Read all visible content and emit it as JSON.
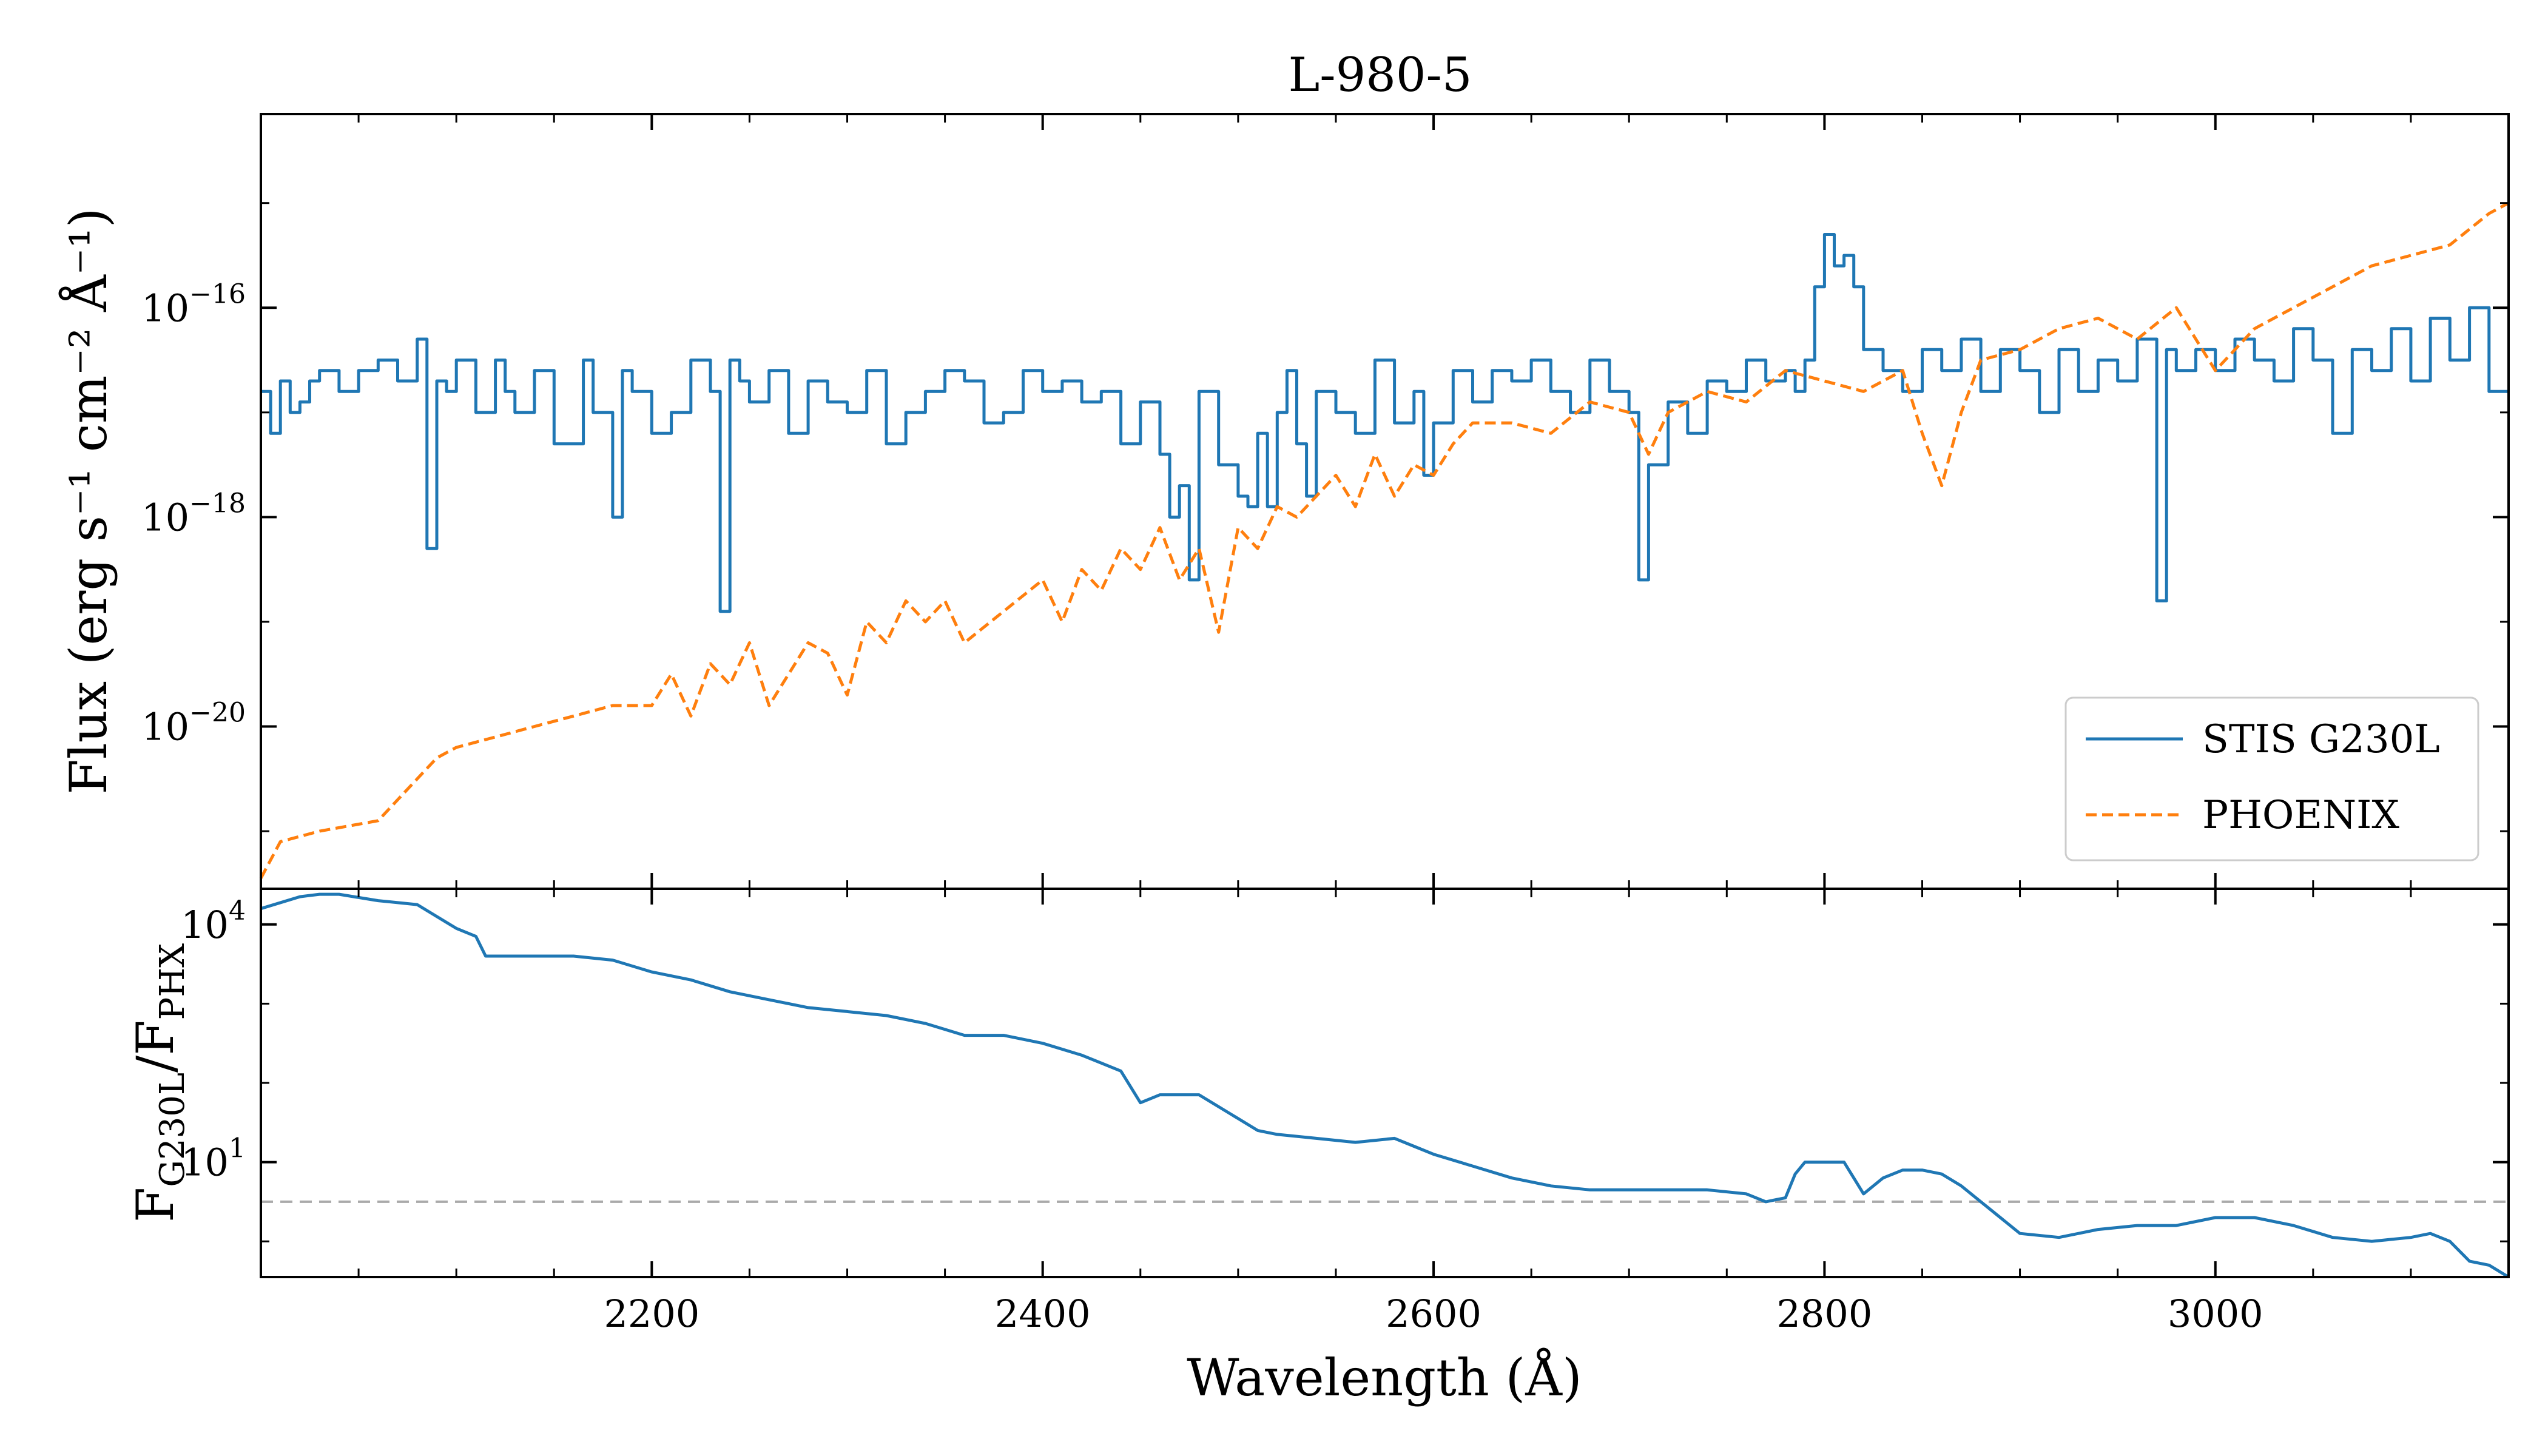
{
  "chart_data": [
    {
      "type": "line",
      "title": "L-980-5",
      "ylabel": "Flux (erg s⁻¹ cm⁻² Å⁻¹)",
      "yscale": "log",
      "xlim": [
        2000,
        3150
      ],
      "ylim_log10": [
        -21.55,
        -14.15
      ],
      "y_ticks": [
        {
          "base": "10",
          "exp": "−16",
          "log10": -16
        },
        {
          "base": "10",
          "exp": "−18",
          "log10": -18
        },
        {
          "base": "10",
          "exp": "−20",
          "log10": -20
        }
      ],
      "legend": {
        "placement": "lower-right",
        "entries": [
          "STIS G230L",
          "PHOENIX"
        ]
      },
      "series": [
        {
          "name": "STIS G230L",
          "style": "steps",
          "color": "#1f77b4",
          "x": [
            2000,
            2005,
            2010,
            2015,
            2020,
            2025,
            2030,
            2040,
            2050,
            2060,
            2070,
            2080,
            2085,
            2090,
            2095,
            2100,
            2110,
            2120,
            2125,
            2130,
            2140,
            2150,
            2160,
            2165,
            2170,
            2180,
            2185,
            2190,
            2200,
            2210,
            2220,
            2230,
            2235,
            2240,
            2245,
            2250,
            2260,
            2270,
            2280,
            2290,
            2300,
            2310,
            2320,
            2330,
            2340,
            2350,
            2360,
            2370,
            2380,
            2390,
            2400,
            2410,
            2420,
            2430,
            2440,
            2450,
            2460,
            2465,
            2470,
            2475,
            2480,
            2490,
            2500,
            2505,
            2510,
            2515,
            2520,
            2525,
            2530,
            2535,
            2540,
            2550,
            2560,
            2570,
            2580,
            2590,
            2595,
            2600,
            2610,
            2620,
            2630,
            2640,
            2650,
            2660,
            2670,
            2680,
            2690,
            2700,
            2705,
            2710,
            2720,
            2730,
            2740,
            2750,
            2760,
            2770,
            2780,
            2785,
            2790,
            2795,
            2800,
            2805,
            2810,
            2815,
            2820,
            2830,
            2840,
            2850,
            2860,
            2870,
            2880,
            2890,
            2900,
            2910,
            2920,
            2930,
            2940,
            2950,
            2960,
            2970,
            2975,
            2980,
            2990,
            3000,
            3010,
            3020,
            3030,
            3040,
            3050,
            3060,
            3070,
            3080,
            3090,
            3100,
            3110,
            3120,
            3130,
            3140,
            3150
          ],
          "log10_flux": [
            -16.8,
            -17.2,
            -16.7,
            -17.0,
            -16.9,
            -16.7,
            -16.6,
            -16.8,
            -16.6,
            -16.5,
            -16.7,
            -16.3,
            -18.3,
            -16.7,
            -16.8,
            -16.5,
            -17.0,
            -16.5,
            -16.8,
            -17.0,
            -16.6,
            -17.3,
            -17.3,
            -16.5,
            -17.0,
            -18.0,
            -16.6,
            -16.8,
            -17.2,
            -17.0,
            -16.5,
            -16.8,
            -18.9,
            -16.5,
            -16.7,
            -16.9,
            -16.6,
            -17.2,
            -16.7,
            -16.9,
            -17.0,
            -16.6,
            -17.3,
            -17.0,
            -16.8,
            -16.6,
            -16.7,
            -17.1,
            -17.0,
            -16.6,
            -16.8,
            -16.7,
            -16.9,
            -16.8,
            -17.3,
            -16.9,
            -17.4,
            -18.0,
            -17.7,
            -18.6,
            -16.8,
            -17.5,
            -17.8,
            -17.9,
            -17.2,
            -17.9,
            -17.0,
            -16.6,
            -17.3,
            -17.8,
            -16.8,
            -17.0,
            -17.2,
            -16.5,
            -17.1,
            -16.8,
            -17.6,
            -17.1,
            -16.6,
            -16.9,
            -16.6,
            -16.7,
            -16.5,
            -16.8,
            -17.0,
            -16.5,
            -16.8,
            -17.0,
            -18.6,
            -17.5,
            -16.9,
            -17.2,
            -16.7,
            -16.8,
            -16.5,
            -16.7,
            -16.6,
            -16.8,
            -16.5,
            -15.8,
            -15.3,
            -15.6,
            -15.5,
            -15.8,
            -16.4,
            -16.6,
            -16.8,
            -16.4,
            -16.6,
            -16.3,
            -16.8,
            -16.4,
            -16.6,
            -17.0,
            -16.4,
            -16.8,
            -16.5,
            -16.7,
            -16.3,
            -18.8,
            -16.4,
            -16.6,
            -16.4,
            -16.6,
            -16.3,
            -16.5,
            -16.7,
            -16.2,
            -16.5,
            -17.2,
            -16.4,
            -16.6,
            -16.2,
            -16.7,
            -16.1,
            -16.5,
            -16.0,
            -16.8
          ]
        },
        {
          "name": "PHOENIX",
          "style": "dashed",
          "color": "#ff7f0e",
          "x": [
            2000,
            2010,
            2030,
            2060,
            2080,
            2090,
            2100,
            2120,
            2140,
            2160,
            2180,
            2200,
            2210,
            2220,
            2230,
            2240,
            2250,
            2260,
            2270,
            2280,
            2290,
            2300,
            2310,
            2320,
            2330,
            2340,
            2350,
            2360,
            2380,
            2400,
            2410,
            2420,
            2430,
            2440,
            2450,
            2460,
            2470,
            2480,
            2490,
            2500,
            2510,
            2520,
            2530,
            2540,
            2550,
            2560,
            2570,
            2580,
            2590,
            2600,
            2610,
            2620,
            2640,
            2660,
            2680,
            2700,
            2710,
            2720,
            2740,
            2760,
            2780,
            2800,
            2820,
            2840,
            2850,
            2860,
            2870,
            2880,
            2900,
            2920,
            2940,
            2960,
            2980,
            3000,
            3020,
            3040,
            3060,
            3080,
            3100,
            3120,
            3140,
            3150
          ],
          "log10_flux": [
            -21.45,
            -21.1,
            -21.0,
            -20.9,
            -20.5,
            -20.3,
            -20.2,
            -20.1,
            -20.0,
            -19.9,
            -19.8,
            -19.8,
            -19.5,
            -19.9,
            -19.4,
            -19.6,
            -19.2,
            -19.8,
            -19.5,
            -19.2,
            -19.3,
            -19.7,
            -19.0,
            -19.2,
            -18.8,
            -19.0,
            -18.8,
            -19.2,
            -18.9,
            -18.6,
            -19.0,
            -18.5,
            -18.7,
            -18.3,
            -18.5,
            -18.1,
            -18.6,
            -18.3,
            -19.1,
            -18.1,
            -18.3,
            -17.9,
            -18.0,
            -17.8,
            -17.6,
            -17.9,
            -17.4,
            -17.8,
            -17.5,
            -17.6,
            -17.3,
            -17.1,
            -17.1,
            -17.2,
            -16.9,
            -17.0,
            -17.4,
            -17.0,
            -16.8,
            -16.9,
            -16.6,
            -16.7,
            -16.8,
            -16.6,
            -17.2,
            -17.7,
            -17.0,
            -16.5,
            -16.4,
            -16.2,
            -16.1,
            -16.3,
            -16.0,
            -16.6,
            -16.2,
            -16.0,
            -15.8,
            -15.6,
            -15.5,
            -15.4,
            -15.1,
            -15.0
          ]
        }
      ]
    },
    {
      "type": "line",
      "xlabel": "Wavelength (Å)",
      "ylabel": "F",
      "ylabel_subscript_1": "G230L",
      "ylabel_middle": "/F",
      "ylabel_subscript_2": "PHX",
      "yscale": "log",
      "xlim": [
        2000,
        3150
      ],
      "ylim_log10": [
        -0.45,
        4.45
      ],
      "y_ticks": [
        {
          "base": "10",
          "exp": "4",
          "log10": 4
        },
        {
          "base": "10",
          "exp": "1",
          "log10": 1
        }
      ],
      "x_ticks": [
        2200,
        2400,
        2600,
        2800,
        3000
      ],
      "reference_line": {
        "log10": 0.5,
        "color": "#aaaaaa",
        "style": "dashed"
      },
      "series": [
        {
          "color": "#1f77b4",
          "x": [
            2000,
            2020,
            2030,
            2040,
            2060,
            2080,
            2090,
            2100,
            2110,
            2115,
            2130,
            2160,
            2180,
            2200,
            2220,
            2240,
            2260,
            2280,
            2300,
            2320,
            2340,
            2360,
            2380,
            2400,
            2420,
            2430,
            2440,
            2450,
            2460,
            2480,
            2500,
            2510,
            2520,
            2540,
            2560,
            2580,
            2590,
            2600,
            2620,
            2640,
            2660,
            2680,
            2700,
            2720,
            2740,
            2760,
            2770,
            2780,
            2785,
            2790,
            2800,
            2810,
            2815,
            2820,
            2830,
            2840,
            2850,
            2860,
            2870,
            2880,
            2890,
            2900,
            2920,
            2940,
            2960,
            2980,
            3000,
            3020,
            3040,
            3060,
            3080,
            3100,
            3110,
            3120,
            3130,
            3140,
            3150
          ],
          "log10_ratio": [
            4.2,
            4.35,
            4.38,
            4.38,
            4.3,
            4.25,
            4.1,
            3.95,
            3.85,
            3.6,
            3.6,
            3.6,
            3.55,
            3.4,
            3.3,
            3.15,
            3.05,
            2.95,
            2.9,
            2.85,
            2.75,
            2.6,
            2.6,
            2.5,
            2.35,
            2.25,
            2.15,
            1.75,
            1.85,
            1.85,
            1.55,
            1.4,
            1.35,
            1.3,
            1.25,
            1.3,
            1.2,
            1.1,
            0.95,
            0.8,
            0.7,
            0.65,
            0.65,
            0.65,
            0.65,
            0.6,
            0.5,
            0.55,
            0.85,
            1.0,
            1.0,
            1.0,
            0.8,
            0.6,
            0.8,
            0.9,
            0.9,
            0.85,
            0.7,
            0.5,
            0.3,
            0.1,
            0.05,
            0.15,
            0.2,
            0.2,
            0.3,
            0.3,
            0.2,
            0.05,
            0.0,
            0.05,
            0.1,
            0.0,
            -0.25,
            -0.3,
            -0.45
          ]
        }
      ]
    }
  ]
}
